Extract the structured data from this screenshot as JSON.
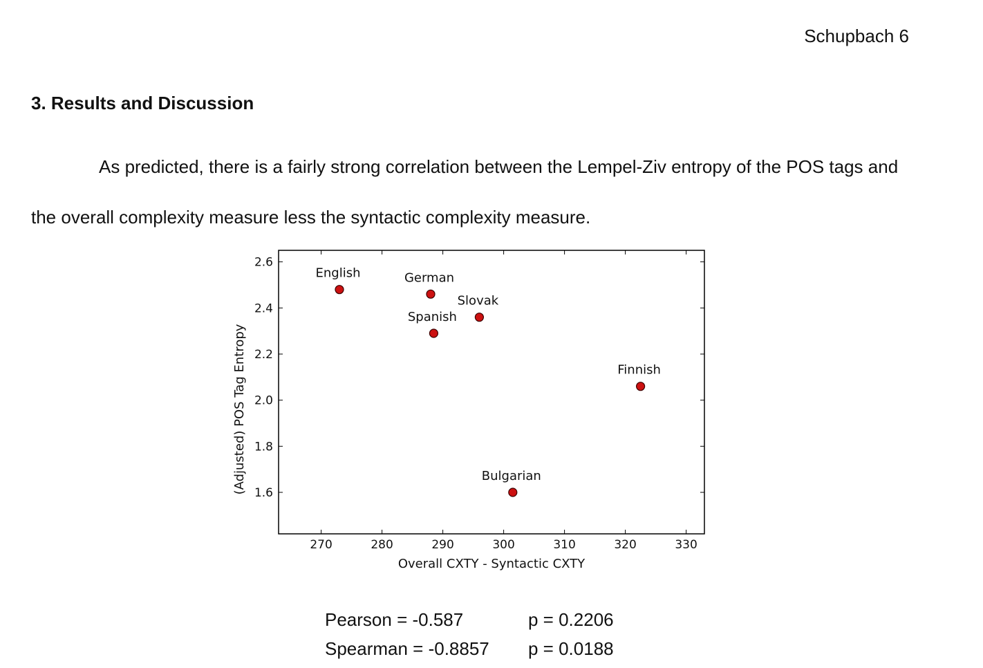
{
  "header": {
    "page_label": "Schupbach 6"
  },
  "section": {
    "heading": "3. Results and Discussion"
  },
  "body": {
    "paragraph": "As predicted, there is a fairly strong correlation between the Lempel-Ziv entropy of the POS tags and the overall complexity measure less the syntactic complexity measure."
  },
  "chart_data": {
    "type": "scatter",
    "title": "",
    "xlabel": "Overall CXTY - Syntactic CXTY",
    "ylabel": "(Adjusted) POS Tag Entropy",
    "xlim": [
      263,
      333
    ],
    "ylim": [
      1.42,
      2.65
    ],
    "xticks": [
      270,
      280,
      290,
      300,
      310,
      320,
      330
    ],
    "yticks": [
      1.6,
      1.8,
      2.0,
      2.2,
      2.4,
      2.6
    ],
    "ytick_labels": [
      "1.6",
      "1.8",
      "2.0",
      "2.2",
      "2.4",
      "2.6"
    ],
    "grid": false,
    "marker_color": "#cc1111",
    "points": [
      {
        "label": "English",
        "x": 273,
        "y": 2.48
      },
      {
        "label": "German",
        "x": 288,
        "y": 2.46
      },
      {
        "label": "Slovak",
        "x": 296,
        "y": 2.36
      },
      {
        "label": "Spanish",
        "x": 288.5,
        "y": 2.29
      },
      {
        "label": "Finnish",
        "x": 322.5,
        "y": 2.06
      },
      {
        "label": "Bulgarian",
        "x": 301.5,
        "y": 1.6
      }
    ]
  },
  "stats": [
    {
      "name": "Pearson = -0.587",
      "p": "p = 0.2206"
    },
    {
      "name": "Spearman = -0.8857",
      "p": "p = 0.0188"
    }
  ]
}
